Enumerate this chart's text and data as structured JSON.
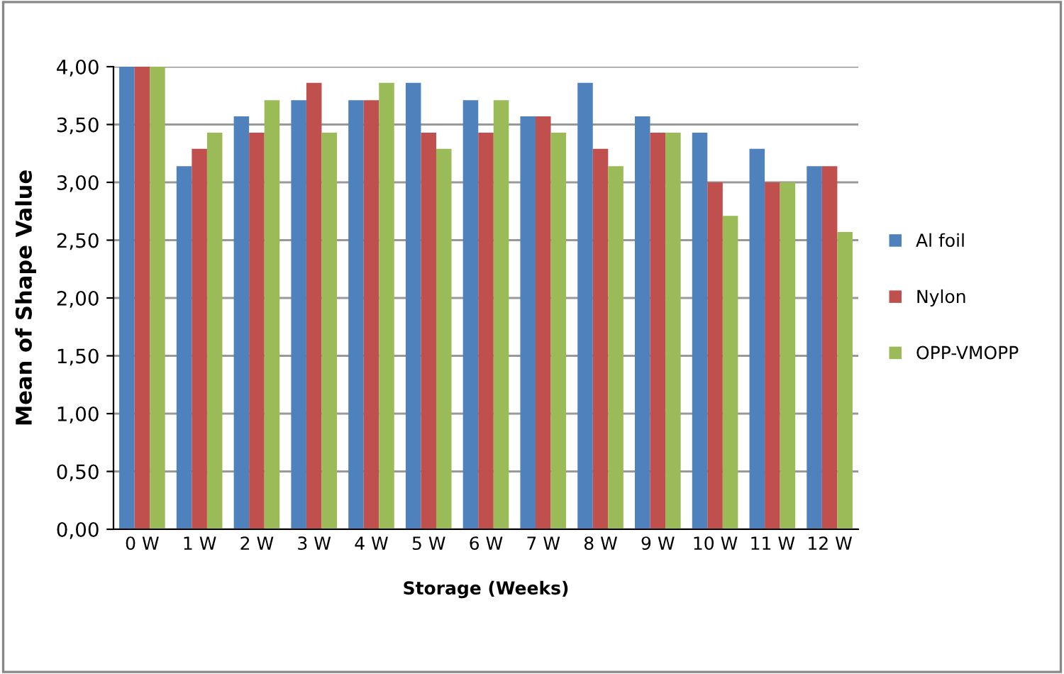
{
  "chart_data": {
    "type": "bar",
    "xlabel": "Storage (Weeks)",
    "ylabel": "Mean of Shape Value",
    "categories": [
      "0 W",
      "1 W",
      "2 W",
      "3 W",
      "4 W",
      "5 W",
      "6 W",
      "7 W",
      "8 W",
      "9 W",
      "10 W",
      "11 W",
      "12 W"
    ],
    "series": [
      {
        "name": "Al foil",
        "color": "#4f81bd",
        "values": [
          4.0,
          3.14,
          3.57,
          3.71,
          3.71,
          3.86,
          3.71,
          3.57,
          3.86,
          3.57,
          3.43,
          3.29,
          3.14
        ]
      },
      {
        "name": "Nylon",
        "color": "#c0504d",
        "values": [
          4.0,
          3.29,
          3.43,
          3.86,
          3.71,
          3.43,
          3.43,
          3.57,
          3.29,
          3.43,
          3.0,
          3.0,
          3.14
        ]
      },
      {
        "name": "OPP-VMOPP",
        "color": "#9bbb59",
        "values": [
          4.0,
          3.43,
          3.71,
          3.43,
          3.86,
          3.29,
          3.71,
          3.43,
          3.14,
          3.43,
          2.71,
          3.0,
          2.57
        ]
      }
    ],
    "ylim": [
      0,
      4
    ],
    "yticks": [
      {
        "value": 0,
        "label": "0,00"
      },
      {
        "value": 0.5,
        "label": "0,50"
      },
      {
        "value": 1,
        "label": "1,00"
      },
      {
        "value": 1.5,
        "label": "1,50"
      },
      {
        "value": 2,
        "label": "2,00"
      },
      {
        "value": 2.5,
        "label": "2,50"
      },
      {
        "value": 3,
        "label": "3,00"
      },
      {
        "value": 3.5,
        "label": "3,50"
      },
      {
        "value": 4,
        "label": "4,00"
      }
    ],
    "grid": "y",
    "legend": "right"
  }
}
